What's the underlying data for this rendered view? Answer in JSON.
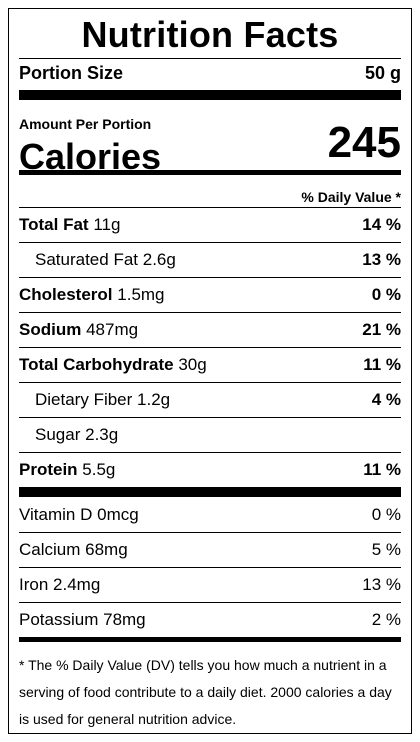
{
  "title": "Nutrition Facts",
  "portion": {
    "label": "Portion Size",
    "value": "50 g"
  },
  "amount_per_portion": "Amount Per Portion",
  "calories": {
    "label": "Calories",
    "value": "245"
  },
  "daily_value_header": "% Daily Value *",
  "nutrients": [
    {
      "name": "Total Fat",
      "amount": "11g",
      "pct": "14 %"
    },
    {
      "name": "Saturated Fat",
      "amount": "2.6g",
      "pct": "13 %"
    },
    {
      "name": "Cholesterol",
      "amount": "1.5mg",
      "pct": "0 %"
    },
    {
      "name": "Sodium",
      "amount": "487mg",
      "pct": "21 %"
    },
    {
      "name": "Total Carbohydrate",
      "amount": "30g",
      "pct": "11 %"
    },
    {
      "name": "Dietary Fiber",
      "amount": "1.2g",
      "pct": "4 %"
    },
    {
      "name": "Sugar",
      "amount": "2.3g",
      "pct": ""
    },
    {
      "name": "Protein",
      "amount": "5.5g",
      "pct": "11 %"
    }
  ],
  "vitamins": [
    {
      "name": "Vitamin D",
      "amount": "0mcg",
      "pct": "0 %"
    },
    {
      "name": "Calcium",
      "amount": "68mg",
      "pct": "5 %"
    },
    {
      "name": "Iron",
      "amount": "2.4mg",
      "pct": "13 %"
    },
    {
      "name": "Potassium",
      "amount": "78mg",
      "pct": "2 %"
    }
  ],
  "footnote": "* The % Daily Value (DV) tells you how much a nutrient in a serving of food contribute to a daily diet. 2000 calories a day is used for general nutrition advice."
}
